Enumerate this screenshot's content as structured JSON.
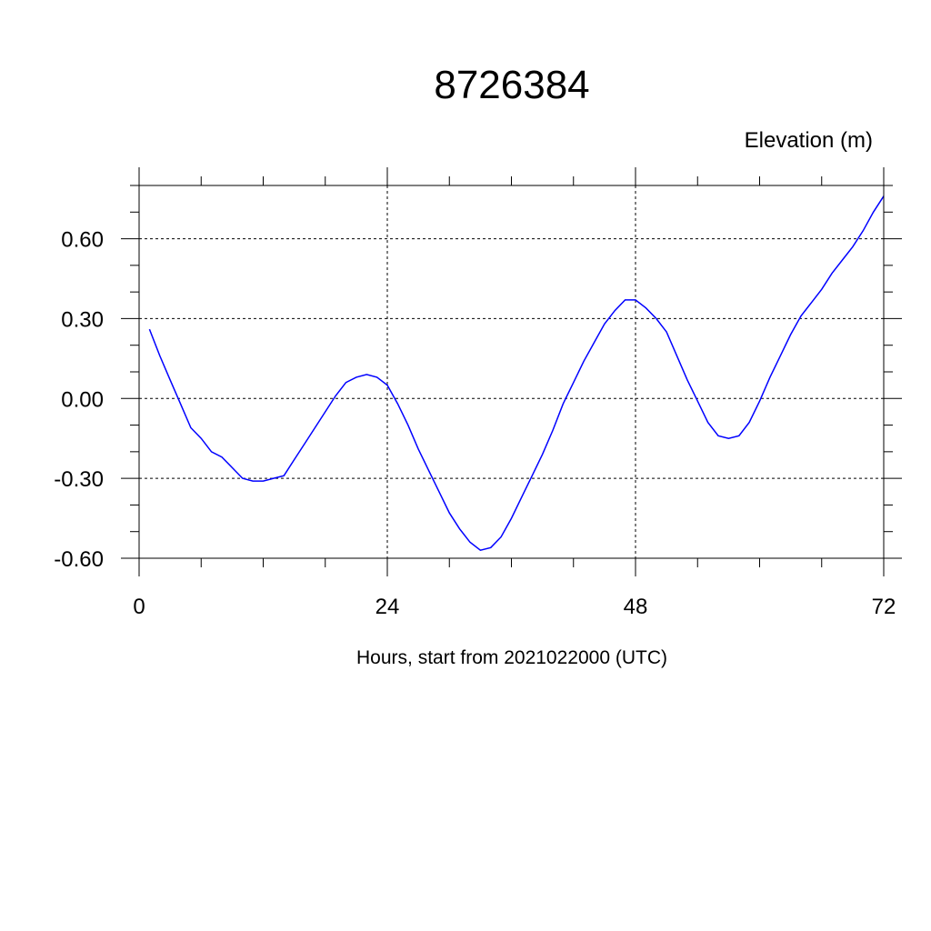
{
  "chart_data": {
    "type": "line",
    "title": "8726384",
    "units_label": "Elevation (m)",
    "xlabel": "Hours, start from 2021022000 (UTC)",
    "ylabel": "",
    "xlim": [
      0,
      72
    ],
    "ylim": [
      -0.6,
      0.8
    ],
    "x_ticks": [
      0,
      24,
      48,
      72
    ],
    "x_tick_labels": [
      "0",
      "24",
      "48",
      "72"
    ],
    "x_minor_step": 6,
    "y_ticks": [
      -0.6,
      -0.3,
      0.0,
      0.3,
      0.6
    ],
    "y_tick_labels": [
      "-0.60",
      "-0.30",
      "0.00",
      "0.30",
      "0.60"
    ],
    "y_minor_step": 0.1,
    "grid": true,
    "line_color": "#0000ff",
    "series": [
      {
        "x": [
          1,
          2,
          3,
          4,
          5,
          6,
          7,
          8,
          9,
          10,
          11,
          12,
          13,
          14,
          15,
          16,
          17,
          18,
          19,
          20,
          21,
          22,
          23,
          24,
          25,
          26,
          27,
          28,
          29,
          30,
          31,
          32,
          33,
          34,
          35,
          36,
          37,
          38,
          39,
          40,
          41,
          42,
          43,
          44,
          45,
          46,
          47,
          48,
          49,
          50,
          51,
          52,
          53,
          54,
          55,
          56,
          57,
          58,
          59,
          60,
          61,
          62,
          63,
          64,
          65,
          66,
          67,
          68,
          69,
          70,
          71,
          72
        ],
        "y": [
          0.26,
          0.16,
          0.07,
          -0.02,
          -0.11,
          -0.15,
          -0.2,
          -0.22,
          -0.26,
          -0.3,
          -0.31,
          -0.31,
          -0.3,
          -0.29,
          -0.23,
          -0.17,
          -0.11,
          -0.05,
          0.01,
          0.06,
          0.08,
          0.09,
          0.08,
          0.05,
          -0.02,
          -0.1,
          -0.19,
          -0.27,
          -0.35,
          -0.43,
          -0.49,
          -0.54,
          -0.57,
          -0.56,
          -0.52,
          -0.45,
          -0.37,
          -0.29,
          -0.21,
          -0.12,
          -0.02,
          0.06,
          0.14,
          0.21,
          0.28,
          0.33,
          0.37,
          0.37,
          0.34,
          0.3,
          0.25,
          0.16,
          0.07,
          -0.01,
          -0.09,
          -0.14,
          -0.15,
          -0.14,
          -0.09,
          -0.01,
          0.08,
          0.16,
          0.24,
          0.31,
          0.36,
          0.41,
          0.47,
          0.52,
          0.57,
          0.63,
          0.7,
          0.76
        ]
      }
    ]
  }
}
